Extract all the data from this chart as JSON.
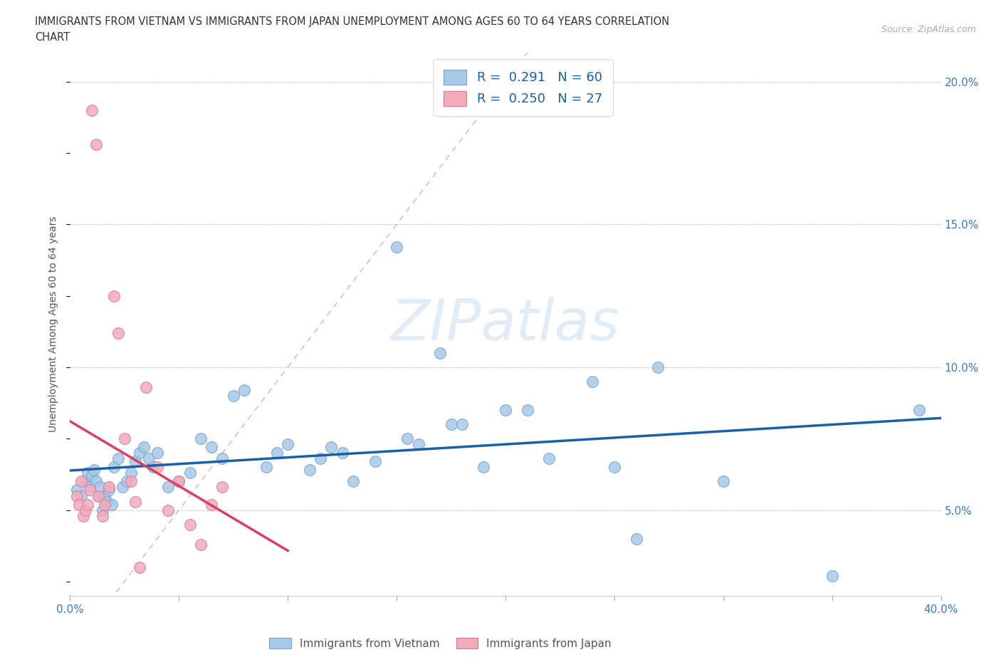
{
  "title_line1": "IMMIGRANTS FROM VIETNAM VS IMMIGRANTS FROM JAPAN UNEMPLOYMENT AMONG AGES 60 TO 64 YEARS CORRELATION",
  "title_line2": "CHART",
  "source": "Source: ZipAtlas.com",
  "ylabel": "Unemployment Among Ages 60 to 64 years",
  "xlim": [
    0.0,
    0.4
  ],
  "ylim": [
    0.02,
    0.21
  ],
  "yticks_right": [
    0.05,
    0.1,
    0.15,
    0.2
  ],
  "ytick_right_labels": [
    "5.0%",
    "10.0%",
    "15.0%",
    "20.0%"
  ],
  "watermark_text": "ZIPatlas",
  "legend_R_vietnam": "0.291",
  "legend_N_vietnam": "60",
  "legend_R_japan": "0.250",
  "legend_N_japan": "27",
  "vietnam_color": "#a8c8e8",
  "japan_color": "#f4aabb",
  "trendline_vietnam_color": "#1a5fa8",
  "trendline_japan_color": "#d94060",
  "diagonal_color": "#e0b0b8",
  "vietnam_scatter_x": [
    0.003,
    0.005,
    0.007,
    0.008,
    0.009,
    0.01,
    0.011,
    0.012,
    0.013,
    0.014,
    0.015,
    0.016,
    0.017,
    0.018,
    0.019,
    0.02,
    0.022,
    0.024,
    0.026,
    0.028,
    0.03,
    0.032,
    0.034,
    0.036,
    0.038,
    0.04,
    0.045,
    0.05,
    0.055,
    0.06,
    0.065,
    0.07,
    0.075,
    0.08,
    0.09,
    0.095,
    0.1,
    0.11,
    0.115,
    0.12,
    0.125,
    0.13,
    0.14,
    0.15,
    0.155,
    0.16,
    0.17,
    0.175,
    0.18,
    0.19,
    0.2,
    0.21,
    0.22,
    0.24,
    0.25,
    0.26,
    0.27,
    0.3,
    0.35,
    0.39
  ],
  "vietnam_scatter_y": [
    0.057,
    0.055,
    0.06,
    0.063,
    0.058,
    0.062,
    0.064,
    0.06,
    0.055,
    0.058,
    0.05,
    0.055,
    0.053,
    0.057,
    0.052,
    0.065,
    0.068,
    0.058,
    0.06,
    0.063,
    0.067,
    0.07,
    0.072,
    0.068,
    0.065,
    0.07,
    0.058,
    0.06,
    0.063,
    0.075,
    0.072,
    0.068,
    0.09,
    0.092,
    0.065,
    0.07,
    0.073,
    0.064,
    0.068,
    0.072,
    0.07,
    0.06,
    0.067,
    0.142,
    0.075,
    0.073,
    0.105,
    0.08,
    0.08,
    0.065,
    0.085,
    0.085,
    0.068,
    0.095,
    0.065,
    0.04,
    0.1,
    0.06,
    0.027,
    0.085
  ],
  "japan_scatter_x": [
    0.003,
    0.004,
    0.005,
    0.006,
    0.007,
    0.008,
    0.009,
    0.01,
    0.012,
    0.013,
    0.015,
    0.016,
    0.018,
    0.02,
    0.022,
    0.025,
    0.028,
    0.03,
    0.032,
    0.035,
    0.04,
    0.045,
    0.05,
    0.055,
    0.06,
    0.065,
    0.07
  ],
  "japan_scatter_y": [
    0.055,
    0.052,
    0.06,
    0.048,
    0.05,
    0.052,
    0.057,
    0.19,
    0.178,
    0.055,
    0.048,
    0.052,
    0.058,
    0.125,
    0.112,
    0.075,
    0.06,
    0.053,
    0.03,
    0.093,
    0.065,
    0.05,
    0.06,
    0.045,
    0.038,
    0.052,
    0.058
  ]
}
